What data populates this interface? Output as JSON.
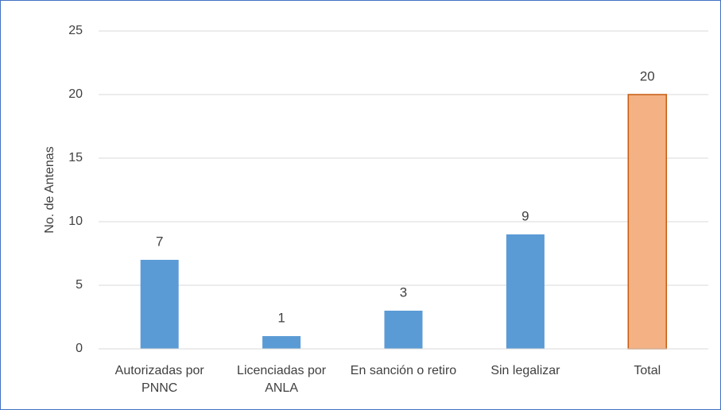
{
  "chart_data": {
    "type": "bar",
    "ylabel": "No. de Antenas",
    "categories": [
      "Autorizadas por PNNC",
      "Licenciadas por ANLA",
      "En sanción o retiro",
      "Sin legalizar",
      "Total"
    ],
    "values": [
      7,
      1,
      3,
      9,
      20
    ],
    "colors": [
      "#5b9bd5",
      "#5b9bd5",
      "#5b9bd5",
      "#5b9bd5",
      "#f4b183"
    ],
    "edge_colors": [
      null,
      null,
      null,
      null,
      "#c55a11"
    ],
    "ylim": [
      0,
      25
    ],
    "yticks": [
      0,
      5,
      10,
      15,
      20,
      25
    ],
    "grid": true
  }
}
